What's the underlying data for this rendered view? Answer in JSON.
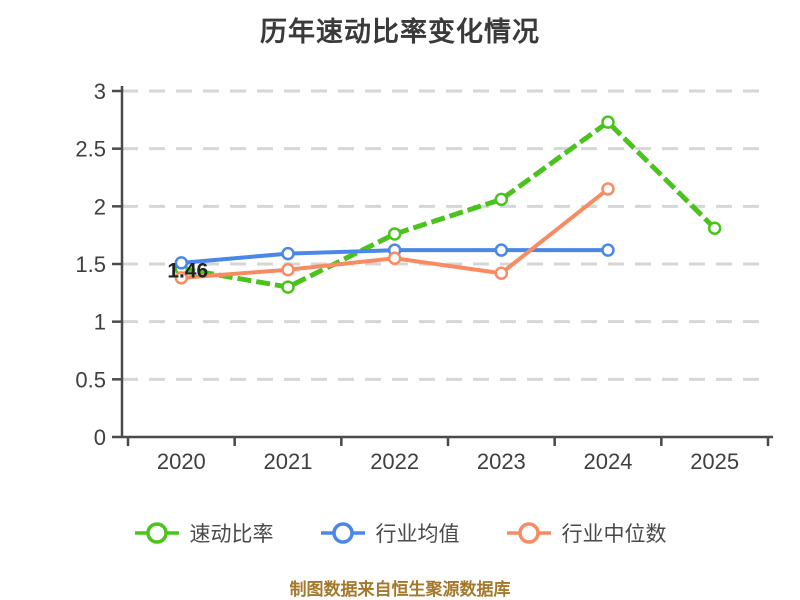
{
  "chart_data": {
    "type": "line",
    "title": "历年速动比率变化情况",
    "categories": [
      "2020",
      "2021",
      "2022",
      "2023",
      "2024",
      "2025"
    ],
    "series": [
      {
        "name": "速动比率",
        "color": "#4bc31d",
        "line_style": "dashed",
        "marker": "circle-white-fill",
        "values": [
          1.46,
          1.3,
          1.76,
          2.06,
          2.73,
          1.81
        ]
      },
      {
        "name": "行业均值",
        "color": "#4a87e8",
        "line_style": "solid",
        "marker": "circle-white-fill",
        "values": [
          1.51,
          1.59,
          1.62,
          1.62,
          1.62,
          null
        ]
      },
      {
        "name": "行业中位数",
        "color": "#f98b63",
        "line_style": "solid",
        "marker": "circle-white-fill",
        "values": [
          1.38,
          1.45,
          1.55,
          1.42,
          2.15,
          null
        ]
      }
    ],
    "ylim": [
      0,
      3
    ],
    "yticks": [
      0,
      0.5,
      1,
      1.5,
      2,
      2.5,
      3
    ],
    "ytick_labels": [
      "0",
      "0.5",
      "1",
      "1.5",
      "2",
      "2.5",
      "3"
    ],
    "grid": "horizontal-dashed",
    "grid_color": "#d6d6d6",
    "axis_color": "#4a4a4a",
    "legend_position": "bottom",
    "annotations": [
      {
        "text": "1.46",
        "series_index": 0,
        "category_index": 0,
        "color": "#212121"
      }
    ]
  },
  "footer": {
    "source_text": "制图数据来自恒生聚源数据库",
    "color": "#a5782b"
  }
}
